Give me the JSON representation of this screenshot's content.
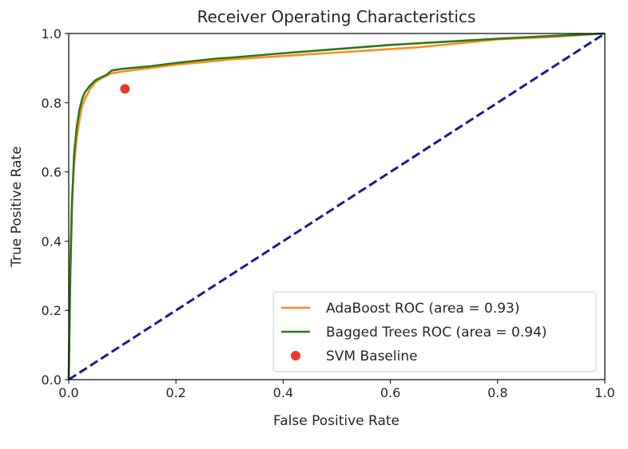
{
  "chart_data": {
    "type": "line",
    "title": "Receiver Operating Characteristics",
    "xlabel": "False Positive Rate",
    "ylabel": "True Positive Rate",
    "xlim": [
      0.0,
      1.0
    ],
    "ylim": [
      0.0,
      1.0
    ],
    "xticks": [
      "0.0",
      "0.2",
      "0.4",
      "0.6",
      "0.8",
      "1.0"
    ],
    "yticks": [
      "0.0",
      "0.2",
      "0.4",
      "0.6",
      "0.8",
      "1.0"
    ],
    "grid": false,
    "legend_position": "lower-right",
    "series": [
      {
        "name": "AdaBoost ROC (area = 0.93)",
        "color": "#ff8c1a",
        "style": "solid",
        "x": [
          0.0,
          0.003,
          0.006,
          0.01,
          0.015,
          0.02,
          0.025,
          0.03,
          0.04,
          0.05,
          0.06,
          0.08,
          0.1,
          0.15,
          0.2,
          0.27,
          0.3,
          0.4,
          0.5,
          0.6,
          0.65,
          0.75,
          0.8,
          0.9,
          0.95,
          1.0
        ],
        "y": [
          0.0,
          0.35,
          0.52,
          0.62,
          0.7,
          0.75,
          0.79,
          0.81,
          0.84,
          0.86,
          0.87,
          0.885,
          0.89,
          0.9,
          0.91,
          0.92,
          0.925,
          0.935,
          0.945,
          0.955,
          0.96,
          0.975,
          0.983,
          0.99,
          0.995,
          1.0
        ]
      },
      {
        "name": "Bagged Trees ROC (area = 0.94)",
        "color": "#2a7a1b",
        "style": "solid",
        "x": [
          0.0,
          0.003,
          0.006,
          0.01,
          0.015,
          0.02,
          0.025,
          0.03,
          0.04,
          0.05,
          0.06,
          0.07,
          0.08,
          0.1,
          0.15,
          0.2,
          0.28,
          0.3,
          0.4,
          0.5,
          0.6,
          0.7,
          0.8,
          0.9,
          1.0
        ],
        "y": [
          0.0,
          0.3,
          0.5,
          0.65,
          0.73,
          0.78,
          0.81,
          0.83,
          0.85,
          0.865,
          0.873,
          0.88,
          0.893,
          0.898,
          0.905,
          0.915,
          0.928,
          0.93,
          0.943,
          0.955,
          0.967,
          0.976,
          0.985,
          0.993,
          1.0
        ]
      },
      {
        "name": "",
        "color": "#1a1a96",
        "style": "dashed",
        "x": [
          0.0,
          1.0
        ],
        "y": [
          0.0,
          1.0
        ]
      }
    ],
    "points": [
      {
        "name": "SVM Baseline",
        "color": "#e8392b",
        "x": 0.105,
        "y": 0.84
      }
    ],
    "legend": [
      {
        "label": "AdaBoost ROC (area = 0.93)",
        "color": "#ff8c1a",
        "marker": "line"
      },
      {
        "label": "Bagged Trees ROC (area = 0.94)",
        "color": "#2a7a1b",
        "marker": "line"
      },
      {
        "label": "SVM Baseline",
        "color": "#e8392b",
        "marker": "dot"
      }
    ]
  }
}
